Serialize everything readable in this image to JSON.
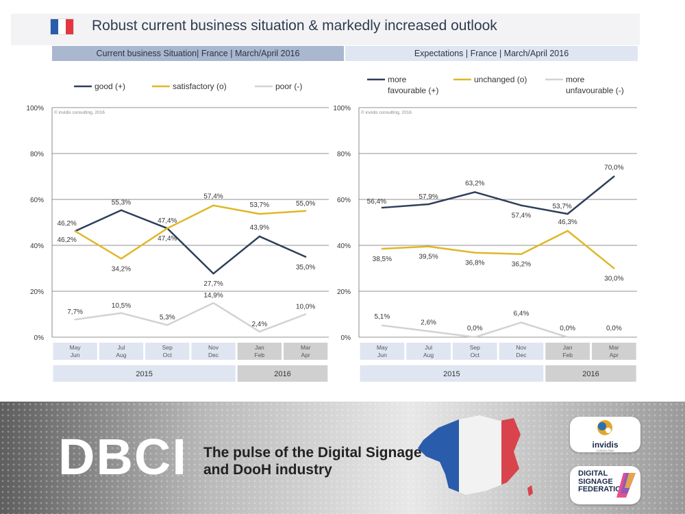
{
  "page": {
    "title": "Robust current business situation & markedly increased outlook",
    "flag_colors": [
      "#2a5cac",
      "#ffffff",
      "#e2373f"
    ]
  },
  "panels": {
    "left_header": "Current business Situation| France | March/April 2016",
    "right_header": "Expectations | France | March/April 2016"
  },
  "chart_data": [
    {
      "type": "line",
      "title": "Current business Situation| France | March/April 2016",
      "copyright": "© invidis consulting, 2016",
      "categories": [
        [
          "May",
          "Jun"
        ],
        [
          "Jul",
          "Aug"
        ],
        [
          "Sep",
          "Oct"
        ],
        [
          "Nov",
          "Dec"
        ],
        [
          "Jan",
          "Feb"
        ],
        [
          "Mar",
          "Apr"
        ]
      ],
      "years": [
        {
          "label": "2015",
          "span": 4
        },
        {
          "label": "2016",
          "span": 2
        }
      ],
      "ylim": [
        0,
        100
      ],
      "yticks": [
        "0%",
        "20%",
        "40%",
        "60%",
        "80%",
        "100%"
      ],
      "grid": true,
      "legend_position": "top",
      "series": [
        {
          "name": "good (+)",
          "color": "#2d3e5a",
          "values": [
            46.2,
            55.3,
            47.4,
            27.7,
            43.9,
            35.0
          ],
          "labels": [
            "46,2%",
            "55,3%",
            "47,4%",
            "27,7%",
            "43,9%",
            "35,0%"
          ]
        },
        {
          "name": "satisfactory (o)",
          "color": "#e0b726",
          "values": [
            46.2,
            34.2,
            47.4,
            57.4,
            53.7,
            55.0
          ],
          "labels": [
            "46,2%",
            "34,2%",
            "47,4%",
            "57,4%",
            "53,7%",
            "55,0%"
          ]
        },
        {
          "name": "poor (-)",
          "color": "#d2d2d2",
          "values": [
            7.7,
            10.5,
            5.3,
            14.9,
            2.4,
            10.0
          ],
          "labels": [
            "7,7%",
            "10,5%",
            "5,3%",
            "14,9%",
            "2,4%",
            "10,0%"
          ]
        }
      ]
    },
    {
      "type": "line",
      "title": "Expectations | France | March/April 2016",
      "copyright": "© invidis consulting, 2016",
      "categories": [
        [
          "May",
          "Jun"
        ],
        [
          "Jul",
          "Aug"
        ],
        [
          "Sep",
          "Oct"
        ],
        [
          "Nov",
          "Dec"
        ],
        [
          "Jan",
          "Feb"
        ],
        [
          "Mar",
          "Apr"
        ]
      ],
      "years": [
        {
          "label": "2015",
          "span": 4
        },
        {
          "label": "2016",
          "span": 2
        }
      ],
      "ylim": [
        0,
        100
      ],
      "yticks": [
        "0%",
        "20%",
        "40%",
        "60%",
        "80%",
        "100%"
      ],
      "grid": true,
      "legend_position": "top",
      "series": [
        {
          "name": "more favourable (+)",
          "color": "#2d3e5a",
          "values": [
            56.4,
            57.9,
            63.2,
            57.4,
            53.7,
            70.0
          ],
          "labels": [
            "56,4%",
            "57,9%",
            "63,2%",
            "57,4%",
            "53,7%",
            "70,0%"
          ]
        },
        {
          "name": "unchanged (o)",
          "color": "#e0b726",
          "values": [
            38.5,
            39.5,
            36.8,
            36.2,
            46.3,
            30.0
          ],
          "labels": [
            "38,5%",
            "39,5%",
            "36,8%",
            "36,2%",
            "46,3%",
            "30,0%"
          ]
        },
        {
          "name": "more unfavourable (-)",
          "color": "#d2d2d2",
          "values": [
            5.1,
            2.6,
            0.0,
            6.4,
            0.0,
            0.0
          ],
          "labels": [
            "5,1%",
            "2,6%",
            "0,0%",
            "6,4%",
            "0,0%",
            "0,0%"
          ]
        }
      ]
    }
  ],
  "footer": {
    "brand": "DBCI",
    "tagline_line1": "The pulse of the Digital Signage",
    "tagline_line2": "and DooH industry",
    "logo_invidis": "invidis",
    "logo_invidis_sub": "CONSULTING",
    "logo_dsf": "DIGITAL\nSIGNAGE\nFEDERATION",
    "map_colors": [
      "#2a5cac",
      "#f2f2f2",
      "#d9434b"
    ]
  }
}
